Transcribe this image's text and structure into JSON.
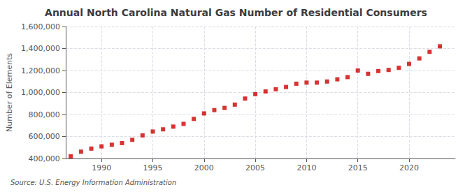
{
  "chart_data": {
    "type": "scatter",
    "title": "Annual North Carolina Natural Gas Number of Residential Consumers",
    "ylabel": "Number of Elements",
    "source": "Source: U.S. Energy Information Administration",
    "color": "#cc0000",
    "marker": "square",
    "grid": true,
    "x": [
      1987,
      1988,
      1989,
      1990,
      1991,
      1992,
      1993,
      1994,
      1995,
      1996,
      1997,
      1998,
      1999,
      2000,
      2001,
      2002,
      2003,
      2004,
      2005,
      2006,
      2007,
      2008,
      2009,
      2010,
      2011,
      2012,
      2013,
      2014,
      2015,
      2016,
      2017,
      2018,
      2019,
      2020,
      2021,
      2022,
      2023
    ],
    "values": [
      420000,
      462000,
      490000,
      510000,
      525000,
      540000,
      570000,
      610000,
      645000,
      665000,
      690000,
      715000,
      760000,
      810000,
      840000,
      860000,
      890000,
      945000,
      985000,
      1010000,
      1030000,
      1050000,
      1080000,
      1090000,
      1090000,
      1100000,
      1120000,
      1140000,
      1200000,
      1170000,
      1195000,
      1205000,
      1225000,
      1260000,
      1310000,
      1370000,
      1420000
    ],
    "xlim": [
      1986.5,
      2024.5
    ],
    "xticks": [
      1990,
      1995,
      2000,
      2005,
      2010,
      2015,
      2020
    ],
    "ylim": [
      400000,
      1600000
    ],
    "yticks": [
      {
        "value": 400000,
        "label": "400,000"
      },
      {
        "value": 600000,
        "label": "600,000"
      },
      {
        "value": 800000,
        "label": "800,000"
      },
      {
        "value": 1000000,
        "label": "1,000,000"
      },
      {
        "value": 1200000,
        "label": "1,200,000"
      },
      {
        "value": 1400000,
        "label": "1,400,000"
      },
      {
        "value": 1600000,
        "label": "1,600,000"
      }
    ]
  }
}
